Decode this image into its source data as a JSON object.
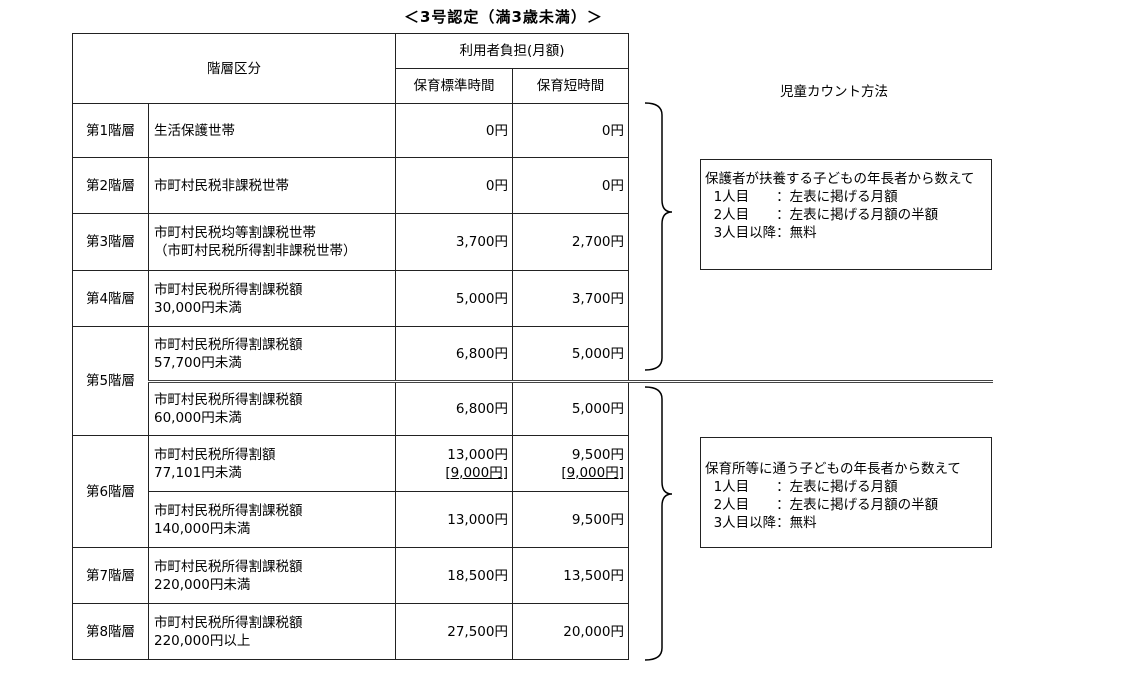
{
  "title": "＜3号認定（満3歳未満）＞",
  "header": {
    "tier_division": "階層区分",
    "burden": "利用者負担(月額)",
    "standard": "保育標準時間",
    "short": "保育短時間"
  },
  "rows": [
    {
      "tier": "第1階層",
      "desc1": "生活保護世帯",
      "desc2": "",
      "standard": "0円",
      "short": "0円"
    },
    {
      "tier": "第2階層",
      "desc1": "市町村民税非課税世帯",
      "desc2": "",
      "standard": "0円",
      "short": "0円"
    },
    {
      "tier": "第3階層",
      "desc1": "市町村民税均等割課税世帯",
      "desc2": "（市町村民税所得割非課税世帯）",
      "standard": "3,700円",
      "short": "2,700円"
    },
    {
      "tier": "第4階層",
      "desc1": "市町村民税所得割課税額",
      "desc2": "30,000円未満",
      "standard": "5,000円",
      "short": "3,700円"
    },
    {
      "tier": "第5階層",
      "desc1": "市町村民税所得割課税額",
      "desc2": "57,700円未満",
      "standard": "6,800円",
      "short": "5,000円"
    },
    {
      "tier": "",
      "desc1": "市町村民税所得割課税額",
      "desc2": "60,000円未満",
      "standard": "6,800円",
      "short": "5,000円"
    },
    {
      "tier": "第6階層",
      "desc1": "市町村民税所得割額",
      "desc2": "77,101円未満",
      "standard": "13,000円",
      "standard_note": "[9,000円]",
      "short": "9,500円",
      "short_note": "[9,000円]"
    },
    {
      "tier": "",
      "desc1": "市町村民税所得割課税額",
      "desc2": "140,000円未満",
      "standard": "13,000円",
      "short": "9,500円"
    },
    {
      "tier": "第7階層",
      "desc1": "市町村民税所得割課税額",
      "desc2": "220,000円未満",
      "standard": "18,500円",
      "short": "13,500円"
    },
    {
      "tier": "第8階層",
      "desc1": "市町村民税所得割課税額",
      "desc2": "220,000円以上",
      "standard": "27,500円",
      "short": "20,000円"
    }
  ],
  "count_method": {
    "title": "児童カウント方法",
    "box1": [
      "保護者が扶養する子どもの年長者から数えて",
      "  1人目　　：左表に掲げる月額",
      "  2人目　　：左表に掲げる月額の半額",
      "  3人目以降：無料"
    ],
    "box2": [
      "保育所等に通う子どもの年長者から数えて",
      "  1人目　　：左表に掲げる月額",
      "  2人目　　：左表に掲げる月額の半額",
      "  3人目以降：無料"
    ]
  }
}
